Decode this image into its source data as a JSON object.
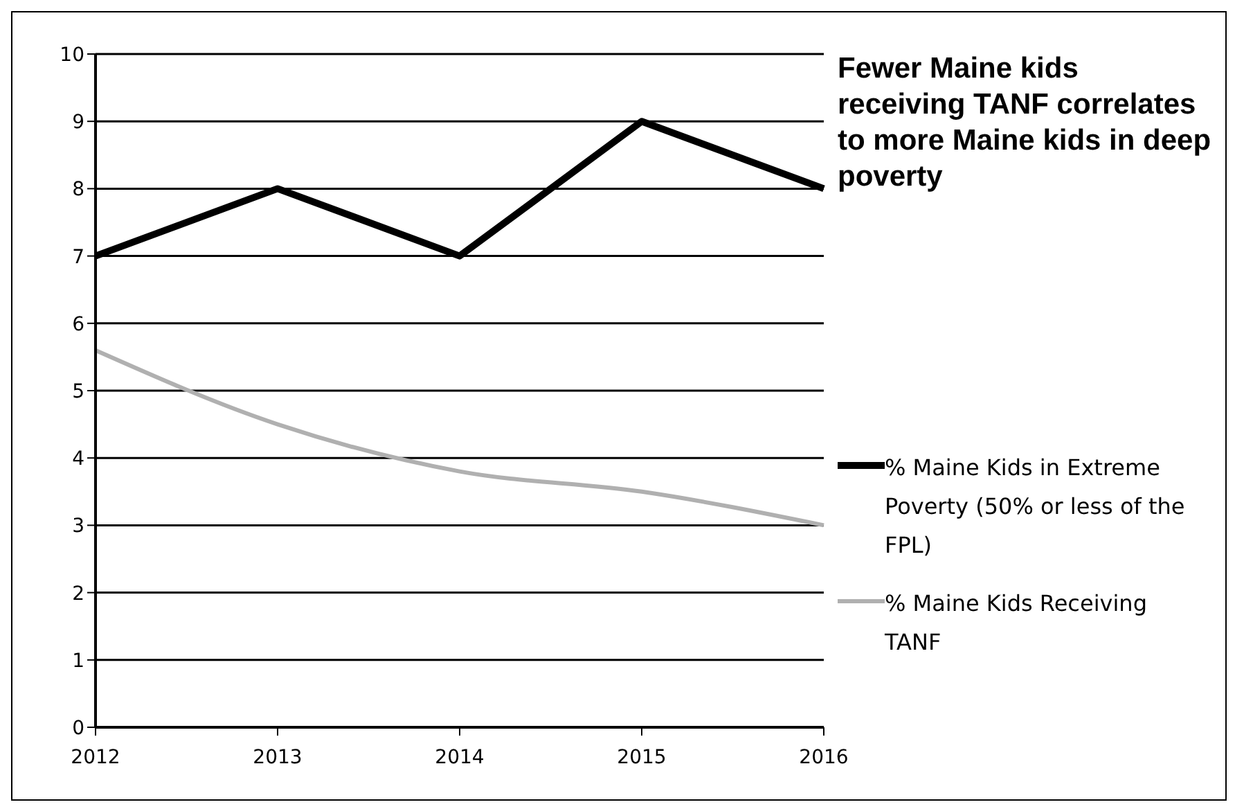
{
  "chart_data": {
    "type": "line",
    "title": "Fewer Maine kids receiving TANF correlates to more Maine kids in deep poverty",
    "categories": [
      "2012",
      "2013",
      "2014",
      "2015",
      "2016"
    ],
    "series": [
      {
        "name": "% Maine Kids in Extreme Poverty (50% or less of the FPL)",
        "color": "#000000",
        "values": [
          7,
          8,
          7,
          9,
          8
        ]
      },
      {
        "name": "% Maine Kids Receiving TANF",
        "color": "#b0b0b0",
        "values": [
          5.6,
          4.5,
          3.8,
          3.5,
          3.0
        ]
      }
    ],
    "ylim": [
      0,
      10
    ],
    "yticks": [
      0,
      1,
      2,
      3,
      4,
      5,
      6,
      7,
      8,
      9,
      10
    ],
    "grid": "y",
    "legend": "right",
    "marker": "none",
    "line_style": "solid"
  }
}
